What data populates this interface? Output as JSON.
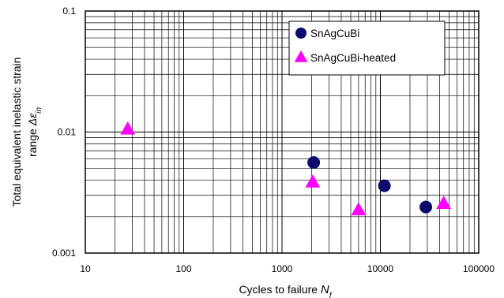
{
  "chart_data": {
    "type": "scatter",
    "xscale": "log",
    "yscale": "log",
    "xlim": [
      10,
      100000
    ],
    "ylim": [
      0.001,
      0.1
    ],
    "xticks": [
      "10",
      "100",
      "1000",
      "10000",
      "100000"
    ],
    "yticks": [
      "0.001",
      "0.01",
      "0.1"
    ],
    "xlabel": "Cycles to failure",
    "xlabel_symbol": "N",
    "xlabel_sub": "f",
    "ylabel_line1": "Total equivalent inelastic strain",
    "ylabel_line2": "range",
    "ylabel_symbol": "Δε",
    "ylabel_sub": "in",
    "grid": true,
    "legend_position": "top-right",
    "series": [
      {
        "name": "SnAgCuBi",
        "marker": "circle",
        "color": "#0b0b6e",
        "points": [
          [
            2100,
            0.0056
          ],
          [
            11000,
            0.0036
          ],
          [
            29000,
            0.0024
          ]
        ]
      },
      {
        "name": "SnAgCuBi-heated",
        "marker": "triangle",
        "color": "#ff00ff",
        "points": [
          [
            27,
            0.0107
          ],
          [
            2050,
            0.0039
          ],
          [
            6000,
            0.0023
          ],
          [
            44000,
            0.0026
          ]
        ]
      }
    ]
  }
}
